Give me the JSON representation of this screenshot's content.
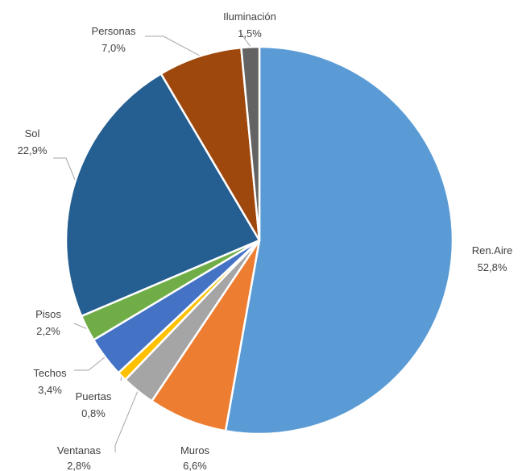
{
  "chart_data": {
    "type": "pie",
    "title": "",
    "slices": [
      {
        "name": "Ren.Aire",
        "value": 52.8,
        "label": "52,8%",
        "color": "#5b9bd5"
      },
      {
        "name": "Muros",
        "value": 6.6,
        "label": "6,6%",
        "color": "#ed7d31"
      },
      {
        "name": "Ventanas",
        "value": 2.8,
        "label": "2,8%",
        "color": "#a5a5a5"
      },
      {
        "name": "Puertas",
        "value": 0.8,
        "label": "0,8%",
        "color": "#ffc000"
      },
      {
        "name": "Techos",
        "value": 3.4,
        "label": "3,4%",
        "color": "#4472c4"
      },
      {
        "name": "Pisos",
        "value": 2.2,
        "label": "2,2%",
        "color": "#70ad47"
      },
      {
        "name": "Sol",
        "value": 22.9,
        "label": "22,9%",
        "color": "#255e91"
      },
      {
        "name": "Personas",
        "value": 7.0,
        "label": "7,0%",
        "color": "#9e480e"
      },
      {
        "name": "Iluminación",
        "value": 1.5,
        "label": "1,5%",
        "color": "#636363"
      }
    ],
    "start_angle_deg": 0,
    "direction": "clockwise",
    "legend": "none",
    "data_labels": "category name and percentage, outside with leader lines"
  }
}
